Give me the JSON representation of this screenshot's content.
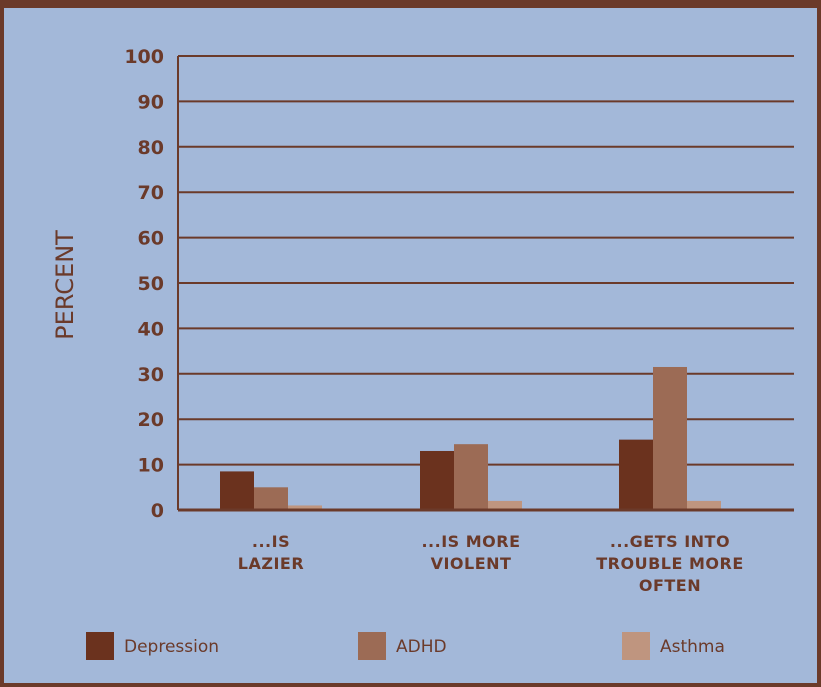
{
  "chart_data": {
    "type": "bar",
    "categories": [
      [
        "...IS",
        "LAZIER"
      ],
      [
        "...IS MORE",
        "VIOLENT"
      ],
      [
        "...GETS INTO",
        "TROUBLE MORE",
        "OFTEN"
      ]
    ],
    "series": [
      {
        "name": "Depression",
        "values": [
          8.5,
          13,
          15.5
        ],
        "color": "#6b321e"
      },
      {
        "name": "ADHD",
        "values": [
          5,
          14.5,
          31.5
        ],
        "color": "#9c6b55"
      },
      {
        "name": "Asthma",
        "values": [
          1,
          2,
          2
        ],
        "color": "#bf957f"
      }
    ],
    "ylabel": "PERCENT",
    "ylim": [
      0,
      100
    ],
    "yticks": [
      0,
      10,
      20,
      30,
      40,
      50,
      60,
      70,
      80,
      90,
      100
    ],
    "grid": true,
    "legend_position": "bottom"
  },
  "colors": {
    "background": "#a3b8d9",
    "frame": "#6b3a2a",
    "grid": "#6b3a2a",
    "text": "#6b3a2a"
  }
}
